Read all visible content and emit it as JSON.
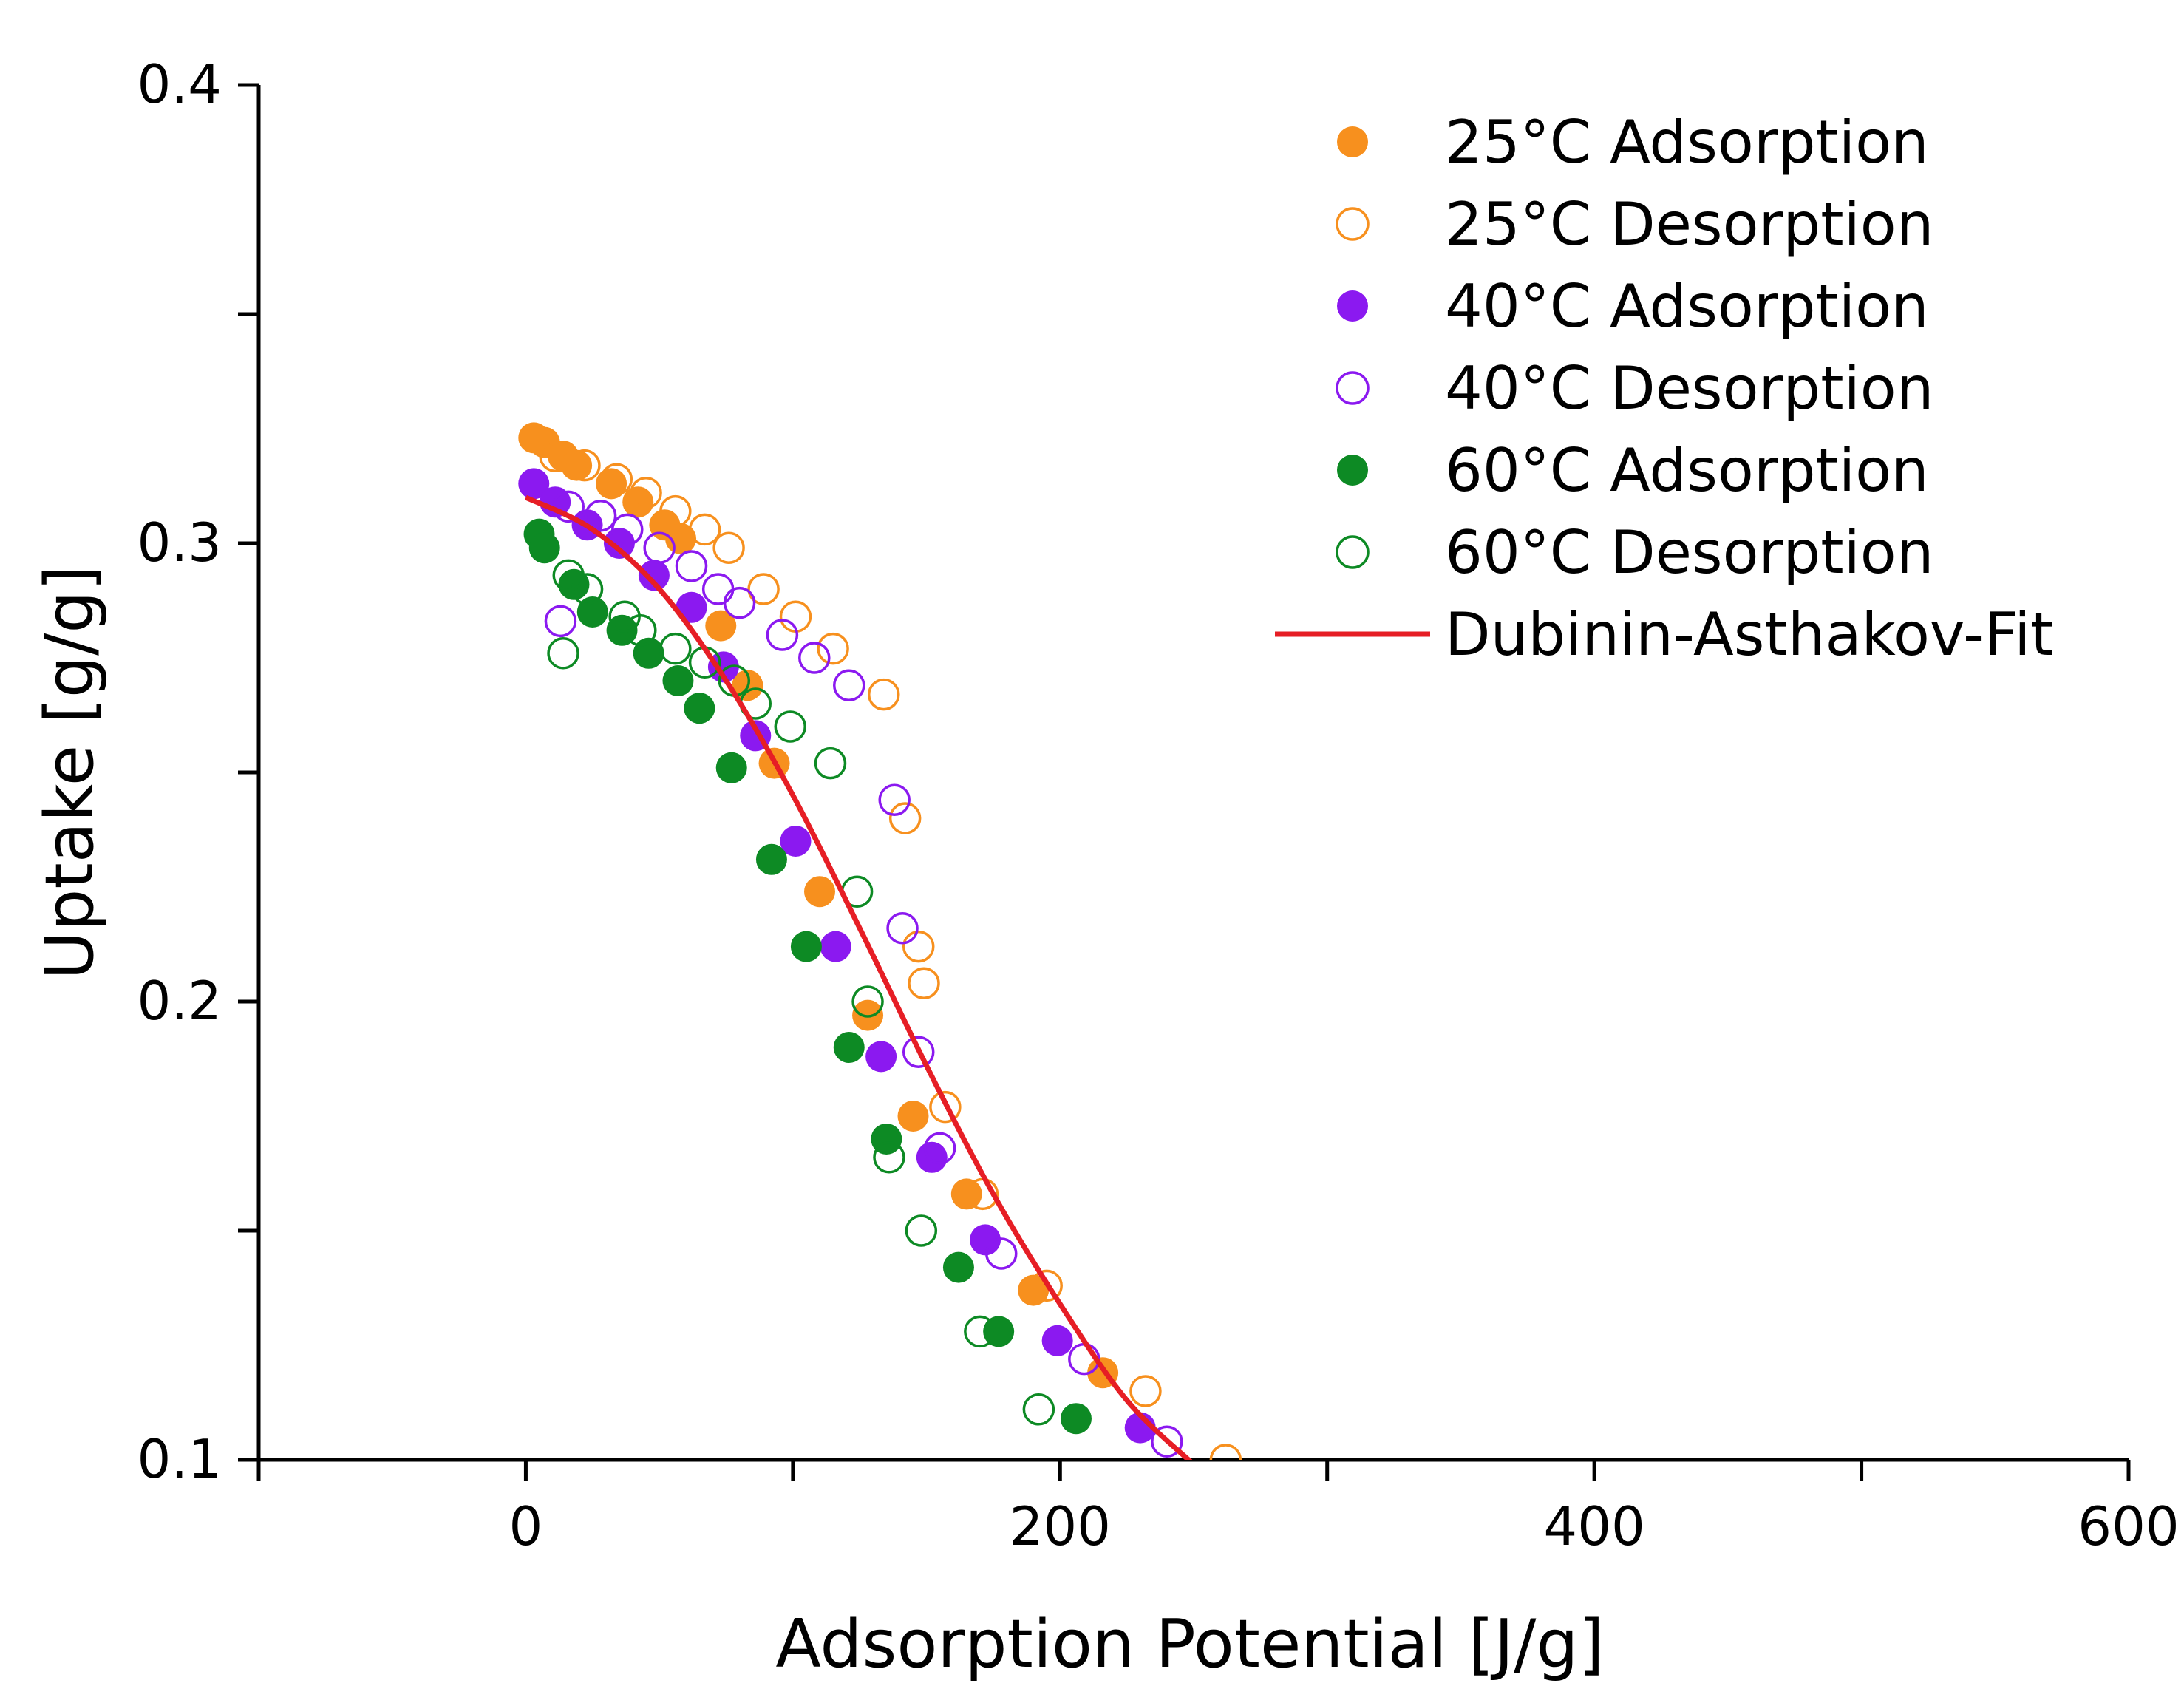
{
  "chart_data": {
    "type": "scatter",
    "title": "",
    "xlabel": "Adsorption Potential [J/g]",
    "ylabel": "Uptake [g/g]",
    "xlim": [
      -100,
      600
    ],
    "ylim": [
      0.1,
      0.4
    ],
    "x_ticks": [
      0,
      200,
      400,
      600
    ],
    "x_tick_labels": [
      "0",
      "200",
      "400",
      "600"
    ],
    "x_minor_ticks": [
      -100,
      100,
      300,
      500
    ],
    "y_ticks": [
      0.1,
      0.2,
      0.3,
      0.4
    ],
    "y_tick_labels": [
      "0.1",
      "0.2",
      "0.3",
      "0.4"
    ],
    "y_minor_ticks": [
      0.15,
      0.25,
      0.35
    ],
    "grid": false,
    "legend_position": "top-right",
    "series": [
      {
        "name": "25°C Adsorption",
        "color": "#f7901e",
        "marker": "filled-circle",
        "x": [
          3,
          7,
          14,
          19,
          32,
          42,
          52,
          58,
          73,
          83,
          93,
          110,
          128,
          145,
          165,
          190,
          216
        ],
        "y": [
          0.323,
          0.322,
          0.319,
          0.317,
          0.313,
          0.309,
          0.304,
          0.301,
          0.282,
          0.269,
          0.252,
          0.224,
          0.197,
          0.175,
          0.158,
          0.137,
          0.119
        ]
      },
      {
        "name": "25°C Desorption",
        "color": "#f7901e",
        "marker": "hollow-circle",
        "x": [
          11,
          22,
          34,
          45,
          56,
          67,
          76,
          89,
          101,
          115,
          134,
          142,
          147,
          149,
          157,
          171,
          195,
          232,
          262
        ],
        "y": [
          0.319,
          0.317,
          0.314,
          0.311,
          0.307,
          0.303,
          0.299,
          0.29,
          0.284,
          0.277,
          0.267,
          0.24,
          0.212,
          0.204,
          0.177,
          0.158,
          0.138,
          0.115,
          0.1
        ]
      },
      {
        "name": "40°C Adsorption",
        "color": "#8b19f0",
        "marker": "filled-circle",
        "x": [
          3,
          11,
          23,
          35,
          48,
          62,
          74,
          86,
          101,
          116,
          133,
          152,
          172,
          199,
          230
        ],
        "y": [
          0.313,
          0.309,
          0.304,
          0.3,
          0.293,
          0.286,
          0.273,
          0.258,
          0.235,
          0.212,
          0.188,
          0.166,
          0.148,
          0.126,
          0.107
        ]
      },
      {
        "name": "40°C Desorption",
        "color": "#8b19f0",
        "marker": "hollow-circle",
        "x": [
          13,
          16,
          28,
          38,
          50,
          62,
          72,
          80,
          96,
          108,
          121,
          138,
          141,
          147,
          155,
          178,
          209,
          240
        ],
        "y": [
          0.283,
          0.308,
          0.306,
          0.303,
          0.299,
          0.295,
          0.29,
          0.287,
          0.28,
          0.275,
          0.269,
          0.244,
          0.216,
          0.189,
          0.168,
          0.145,
          0.122,
          0.104
        ]
      },
      {
        "name": "60°C Adsorption",
        "color": "#0d8a24",
        "marker": "filled-circle",
        "x": [
          5,
          7,
          18,
          25,
          36,
          46,
          57,
          65,
          77,
          92,
          105,
          121,
          135,
          162,
          177,
          206
        ],
        "y": [
          0.302,
          0.299,
          0.291,
          0.285,
          0.281,
          0.276,
          0.27,
          0.264,
          0.251,
          0.231,
          0.212,
          0.19,
          0.17,
          0.142,
          0.128,
          0.109
        ]
      },
      {
        "name": "60°C Desorption",
        "color": "#0d8a24",
        "marker": "hollow-circle",
        "x": [
          14,
          16,
          23,
          37,
          43,
          56,
          67,
          78,
          86,
          99,
          114,
          124,
          128,
          136,
          148,
          170,
          192
        ],
        "y": [
          0.276,
          0.293,
          0.29,
          0.284,
          0.281,
          0.277,
          0.274,
          0.27,
          0.265,
          0.26,
          0.252,
          0.224,
          0.2,
          0.166,
          0.15,
          0.128,
          0.111
        ]
      },
      {
        "name": "Dubinin-Asthakov-Fit",
        "color": "#e61e25",
        "marker": "line",
        "x": [
          0,
          25,
          50,
          75,
          100,
          125,
          150,
          175,
          200,
          225,
          250
        ],
        "y": [
          0.31,
          0.303,
          0.29,
          0.27,
          0.245,
          0.216,
          0.186,
          0.158,
          0.134,
          0.113,
          0.099
        ]
      }
    ]
  }
}
